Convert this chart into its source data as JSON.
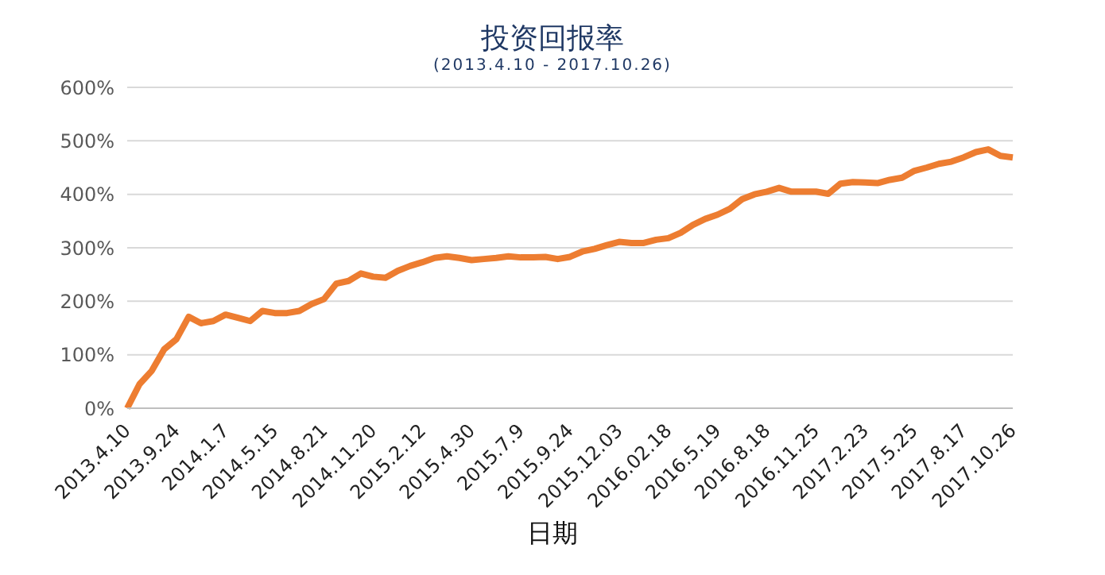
{
  "chart_data": {
    "type": "line",
    "title": "投资回报率",
    "subtitle": "(2013.4.10 - 2017.10.26)",
    "xlabel": "日期",
    "categories": [
      "2013.4.10",
      null,
      null,
      null,
      "2013.9.24",
      null,
      null,
      null,
      "2014.1.7",
      null,
      null,
      null,
      "2014.5.15",
      null,
      null,
      null,
      "2014.8.21",
      null,
      null,
      null,
      "2014.11.20",
      null,
      null,
      null,
      "2015.2.12",
      null,
      null,
      null,
      "2015.4.30",
      null,
      null,
      null,
      "2015.7.9",
      null,
      null,
      null,
      "2015.9.24",
      null,
      null,
      null,
      "2015.12.03",
      null,
      null,
      null,
      "2016.02.18",
      null,
      null,
      null,
      "2016.5.19",
      null,
      null,
      null,
      "2016.8.18",
      null,
      null,
      null,
      "2016.11.25",
      null,
      null,
      null,
      "2017.2.23",
      null,
      null,
      null,
      "2017.5.25",
      null,
      null,
      null,
      "2017.8.17",
      null,
      null,
      null,
      "2017.10.26"
    ],
    "series": [
      {
        "color": "#ed7d31",
        "values": [
          0,
          45,
          70,
          110,
          129,
          171,
          159,
          163,
          175,
          169,
          163,
          182,
          178,
          178,
          182,
          195,
          204,
          233,
          238,
          252,
          246,
          244,
          257,
          266,
          273,
          281,
          284,
          281,
          277,
          279,
          281,
          284,
          282,
          282,
          283,
          279,
          283,
          293,
          298,
          305,
          311,
          309,
          309,
          315,
          318,
          328,
          343,
          354,
          362,
          373,
          391,
          400,
          405,
          412,
          405,
          405,
          405,
          401,
          420,
          423,
          422,
          421,
          427,
          431,
          444,
          450,
          457,
          461,
          469,
          479,
          484,
          472,
          469
        ]
      }
    ],
    "ylim": [
      0,
      600
    ],
    "yticks": [
      {
        "value": 0,
        "label": "0%"
      },
      {
        "value": 100,
        "label": "100%"
      },
      {
        "value": 200,
        "label": "200%"
      },
      {
        "value": 300,
        "label": "300%"
      },
      {
        "value": 400,
        "label": "400%"
      },
      {
        "value": 500,
        "label": "500%"
      },
      {
        "value": 600,
        "label": "600%"
      }
    ],
    "grid": "y",
    "legend": false,
    "marker": "none",
    "line_style": "solid"
  }
}
